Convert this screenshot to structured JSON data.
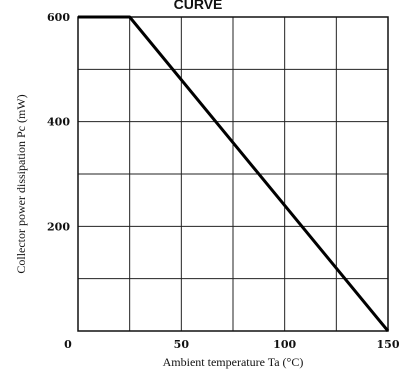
{
  "chart_data": {
    "type": "line",
    "title": "CURVE",
    "xlabel": "Ambient temperature Ta (°C)",
    "ylabel": "Collector power dissipation Pc (mW)",
    "xlim": [
      0,
      150
    ],
    "ylim": [
      0,
      600
    ],
    "x_ticks": [
      0,
      50,
      100,
      150
    ],
    "x_tick_labels": [
      "0",
      "50",
      "100",
      "150"
    ],
    "y_ticks": [
      200,
      400,
      600
    ],
    "y_tick_labels": [
      "200",
      "400",
      "600"
    ],
    "x_grid": [
      0,
      25,
      50,
      75,
      100,
      125,
      150
    ],
    "y_grid": [
      0,
      100,
      200,
      300,
      400,
      500,
      600
    ],
    "grid": true,
    "series": [
      {
        "x": [
          0,
          25,
          150
        ],
        "y": [
          600,
          600,
          0
        ]
      }
    ]
  }
}
